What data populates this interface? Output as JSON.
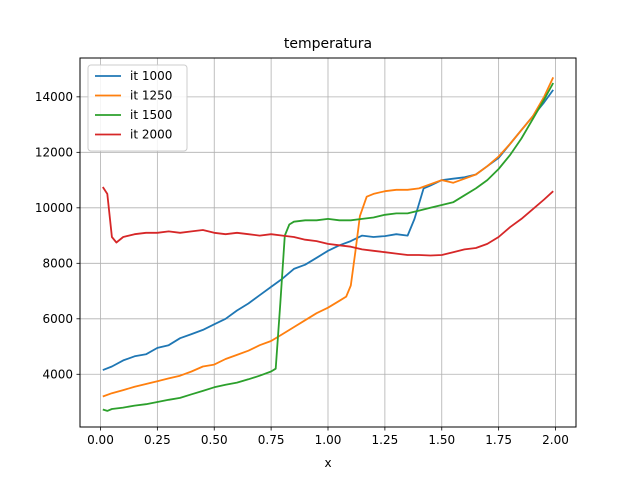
{
  "chart_data": {
    "type": "line",
    "title": "temperatura",
    "xlabel": "x",
    "ylabel": "",
    "xlim": [
      -0.09,
      2.09
    ],
    "ylim": [
      2100,
      15400
    ],
    "xticks": [
      0.0,
      0.25,
      0.5,
      0.75,
      1.0,
      1.25,
      1.5,
      1.75,
      2.0
    ],
    "xtick_labels": [
      "0.00",
      "0.25",
      "0.50",
      "0.75",
      "1.00",
      "1.25",
      "1.50",
      "1.75",
      "2.00"
    ],
    "yticks": [
      4000,
      6000,
      8000,
      10000,
      12000,
      14000
    ],
    "ytick_labels": [
      "4000",
      "6000",
      "8000",
      "10000",
      "12000",
      "14000"
    ],
    "grid": true,
    "legend_position": "top-left",
    "series": [
      {
        "name": "it 1000",
        "color": "#1f77b4",
        "points": [
          [
            0.01,
            4150
          ],
          [
            0.05,
            4280
          ],
          [
            0.1,
            4500
          ],
          [
            0.15,
            4650
          ],
          [
            0.2,
            4720
          ],
          [
            0.25,
            4950
          ],
          [
            0.3,
            5050
          ],
          [
            0.35,
            5300
          ],
          [
            0.4,
            5450
          ],
          [
            0.45,
            5600
          ],
          [
            0.5,
            5800
          ],
          [
            0.55,
            6000
          ],
          [
            0.6,
            6300
          ],
          [
            0.65,
            6550
          ],
          [
            0.7,
            6850
          ],
          [
            0.75,
            7150
          ],
          [
            0.8,
            7450
          ],
          [
            0.85,
            7800
          ],
          [
            0.9,
            7950
          ],
          [
            0.95,
            8200
          ],
          [
            1.0,
            8450
          ],
          [
            1.05,
            8650
          ],
          [
            1.1,
            8800
          ],
          [
            1.15,
            9000
          ],
          [
            1.2,
            8950
          ],
          [
            1.25,
            8980
          ],
          [
            1.3,
            9050
          ],
          [
            1.35,
            9000
          ],
          [
            1.38,
            9600
          ],
          [
            1.42,
            10700
          ],
          [
            1.45,
            10800
          ],
          [
            1.5,
            11000
          ],
          [
            1.55,
            11050
          ],
          [
            1.6,
            11100
          ],
          [
            1.65,
            11200
          ],
          [
            1.7,
            11500
          ],
          [
            1.75,
            11800
          ],
          [
            1.8,
            12300
          ],
          [
            1.85,
            12800
          ],
          [
            1.9,
            13300
          ],
          [
            1.95,
            13800
          ],
          [
            1.99,
            14250
          ]
        ]
      },
      {
        "name": "it 1250",
        "color": "#ff7f0e",
        "points": [
          [
            0.01,
            3200
          ],
          [
            0.05,
            3320
          ],
          [
            0.1,
            3430
          ],
          [
            0.15,
            3550
          ],
          [
            0.2,
            3650
          ],
          [
            0.25,
            3750
          ],
          [
            0.3,
            3850
          ],
          [
            0.35,
            3950
          ],
          [
            0.4,
            4100
          ],
          [
            0.45,
            4280
          ],
          [
            0.5,
            4350
          ],
          [
            0.55,
            4550
          ],
          [
            0.6,
            4700
          ],
          [
            0.65,
            4850
          ],
          [
            0.7,
            5050
          ],
          [
            0.75,
            5200
          ],
          [
            0.8,
            5450
          ],
          [
            0.85,
            5700
          ],
          [
            0.9,
            5950
          ],
          [
            0.95,
            6200
          ],
          [
            1.0,
            6400
          ],
          [
            1.05,
            6650
          ],
          [
            1.08,
            6800
          ],
          [
            1.1,
            7200
          ],
          [
            1.12,
            8400
          ],
          [
            1.14,
            9700
          ],
          [
            1.17,
            10400
          ],
          [
            1.2,
            10500
          ],
          [
            1.25,
            10600
          ],
          [
            1.3,
            10650
          ],
          [
            1.35,
            10650
          ],
          [
            1.4,
            10700
          ],
          [
            1.45,
            10850
          ],
          [
            1.5,
            11000
          ],
          [
            1.55,
            10900
          ],
          [
            1.6,
            11050
          ],
          [
            1.65,
            11200
          ],
          [
            1.7,
            11500
          ],
          [
            1.75,
            11850
          ],
          [
            1.8,
            12300
          ],
          [
            1.85,
            12800
          ],
          [
            1.9,
            13300
          ],
          [
            1.95,
            14000
          ],
          [
            1.99,
            14700
          ]
        ]
      },
      {
        "name": "it 1500",
        "color": "#2ca02c",
        "points": [
          [
            0.01,
            2730
          ],
          [
            0.03,
            2680
          ],
          [
            0.05,
            2750
          ],
          [
            0.1,
            2800
          ],
          [
            0.15,
            2870
          ],
          [
            0.2,
            2920
          ],
          [
            0.25,
            3000
          ],
          [
            0.3,
            3080
          ],
          [
            0.35,
            3150
          ],
          [
            0.4,
            3280
          ],
          [
            0.45,
            3400
          ],
          [
            0.5,
            3530
          ],
          [
            0.55,
            3620
          ],
          [
            0.6,
            3700
          ],
          [
            0.65,
            3820
          ],
          [
            0.7,
            3950
          ],
          [
            0.75,
            4100
          ],
          [
            0.77,
            4200
          ],
          [
            0.79,
            6500
          ],
          [
            0.81,
            9000
          ],
          [
            0.83,
            9400
          ],
          [
            0.85,
            9500
          ],
          [
            0.9,
            9550
          ],
          [
            0.95,
            9550
          ],
          [
            1.0,
            9600
          ],
          [
            1.05,
            9550
          ],
          [
            1.1,
            9550
          ],
          [
            1.15,
            9600
          ],
          [
            1.2,
            9650
          ],
          [
            1.25,
            9750
          ],
          [
            1.3,
            9800
          ],
          [
            1.35,
            9800
          ],
          [
            1.4,
            9900
          ],
          [
            1.45,
            10000
          ],
          [
            1.5,
            10100
          ],
          [
            1.55,
            10200
          ],
          [
            1.6,
            10450
          ],
          [
            1.65,
            10700
          ],
          [
            1.7,
            11000
          ],
          [
            1.75,
            11400
          ],
          [
            1.8,
            11900
          ],
          [
            1.85,
            12500
          ],
          [
            1.9,
            13200
          ],
          [
            1.95,
            13900
          ],
          [
            1.99,
            14500
          ]
        ]
      },
      {
        "name": "it 2000",
        "color": "#d62728",
        "points": [
          [
            0.01,
            10750
          ],
          [
            0.03,
            10500
          ],
          [
            0.05,
            8950
          ],
          [
            0.07,
            8750
          ],
          [
            0.1,
            8950
          ],
          [
            0.15,
            9050
          ],
          [
            0.2,
            9100
          ],
          [
            0.25,
            9100
          ],
          [
            0.3,
            9150
          ],
          [
            0.35,
            9100
          ],
          [
            0.4,
            9150
          ],
          [
            0.45,
            9200
          ],
          [
            0.5,
            9100
          ],
          [
            0.55,
            9050
          ],
          [
            0.6,
            9100
          ],
          [
            0.65,
            9050
          ],
          [
            0.7,
            9000
          ],
          [
            0.75,
            9050
          ],
          [
            0.8,
            9000
          ],
          [
            0.85,
            8950
          ],
          [
            0.9,
            8850
          ],
          [
            0.95,
            8800
          ],
          [
            1.0,
            8700
          ],
          [
            1.05,
            8650
          ],
          [
            1.1,
            8600
          ],
          [
            1.15,
            8500
          ],
          [
            1.2,
            8450
          ],
          [
            1.25,
            8400
          ],
          [
            1.3,
            8350
          ],
          [
            1.35,
            8300
          ],
          [
            1.4,
            8300
          ],
          [
            1.45,
            8280
          ],
          [
            1.5,
            8300
          ],
          [
            1.55,
            8400
          ],
          [
            1.6,
            8500
          ],
          [
            1.65,
            8550
          ],
          [
            1.7,
            8700
          ],
          [
            1.75,
            8950
          ],
          [
            1.8,
            9300
          ],
          [
            1.85,
            9600
          ],
          [
            1.9,
            9950
          ],
          [
            1.95,
            10300
          ],
          [
            1.99,
            10600
          ]
        ]
      }
    ]
  }
}
